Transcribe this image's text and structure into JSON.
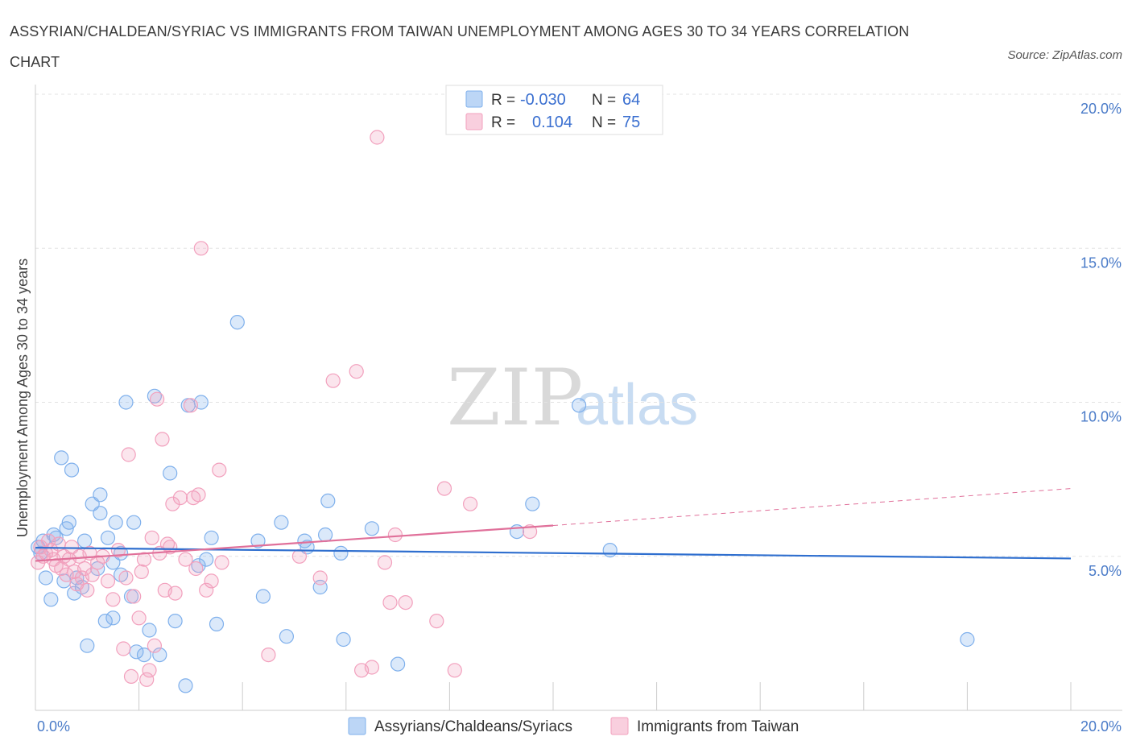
{
  "header": {
    "title": "ASSYRIAN/CHALDEAN/SYRIAC VS IMMIGRANTS FROM TAIWAN UNEMPLOYMENT AMONG AGES 30 TO 34 YEARS CORRELATION CHART",
    "source": "Source: ZipAtlas.com"
  },
  "watermark": {
    "zip": "ZIP",
    "atlas": "atlas"
  },
  "legend": {
    "r_label": "R =",
    "n_label": "N =",
    "items": [
      {
        "r": "-0.030",
        "n": "64",
        "color": "#7fb0ec"
      },
      {
        "r": "0.104",
        "n": "75",
        "color": "#f2a0bd"
      }
    ]
  },
  "chart_data": {
    "type": "scatter",
    "xlabel": "",
    "ylabel": "Unemployment Among Ages 30 to 34 years",
    "xlim": [
      0,
      20
    ],
    "ylim": [
      0,
      20
    ],
    "x_tick_labels": [
      "0.0%",
      "20.0%"
    ],
    "y_tick_labels": [
      "5.0%",
      "10.0%",
      "15.0%",
      "20.0%"
    ],
    "y_ticks": [
      5,
      10,
      15,
      20
    ],
    "grid": true,
    "series": [
      {
        "name": "Assyrians/Chaldeans/Syriacs",
        "color": "#7fb0ec",
        "line_color": "#2f6fcf",
        "trend": {
          "x0": 0,
          "y0": 5.28,
          "x1": 20,
          "y1": 4.93
        },
        "points": [
          [
            0.05,
            5.3
          ],
          [
            0.1,
            5.1
          ],
          [
            0.15,
            5.5
          ],
          [
            0.2,
            4.3
          ],
          [
            0.3,
            3.6
          ],
          [
            0.35,
            5.7
          ],
          [
            0.4,
            5.6
          ],
          [
            0.5,
            8.2
          ],
          [
            0.55,
            4.2
          ],
          [
            0.6,
            5.9
          ],
          [
            0.65,
            6.1
          ],
          [
            0.7,
            7.8
          ],
          [
            0.75,
            3.8
          ],
          [
            0.8,
            4.3
          ],
          [
            0.9,
            4.0
          ],
          [
            0.95,
            5.5
          ],
          [
            1.0,
            2.1
          ],
          [
            1.1,
            6.7
          ],
          [
            1.2,
            4.6
          ],
          [
            1.25,
            7.0
          ],
          [
            1.25,
            6.4
          ],
          [
            1.35,
            2.9
          ],
          [
            1.4,
            5.6
          ],
          [
            1.5,
            3.0
          ],
          [
            1.5,
            4.8
          ],
          [
            1.55,
            6.1
          ],
          [
            1.65,
            5.1
          ],
          [
            1.65,
            4.4
          ],
          [
            1.75,
            10.0
          ],
          [
            1.85,
            3.7
          ],
          [
            1.9,
            6.1
          ],
          [
            1.95,
            1.9
          ],
          [
            2.1,
            1.8
          ],
          [
            2.2,
            2.6
          ],
          [
            2.3,
            10.2
          ],
          [
            2.4,
            1.8
          ],
          [
            2.6,
            7.7
          ],
          [
            2.7,
            2.9
          ],
          [
            2.9,
            0.8
          ],
          [
            2.95,
            9.9
          ],
          [
            3.15,
            4.7
          ],
          [
            3.2,
            10.0
          ],
          [
            3.3,
            4.9
          ],
          [
            3.4,
            5.6
          ],
          [
            3.5,
            2.8
          ],
          [
            3.9,
            12.6
          ],
          [
            4.3,
            5.5
          ],
          [
            4.4,
            3.7
          ],
          [
            4.75,
            6.1
          ],
          [
            4.85,
            2.4
          ],
          [
            5.2,
            5.5
          ],
          [
            5.25,
            5.3
          ],
          [
            5.5,
            4.0
          ],
          [
            5.6,
            5.7
          ],
          [
            5.65,
            6.8
          ],
          [
            5.9,
            5.1
          ],
          [
            5.95,
            2.3
          ],
          [
            6.5,
            5.9
          ],
          [
            7.0,
            1.5
          ],
          [
            9.3,
            5.8
          ],
          [
            9.6,
            6.7
          ],
          [
            10.5,
            9.9
          ],
          [
            11.1,
            5.2
          ],
          [
            18.0,
            2.3
          ]
        ]
      },
      {
        "name": "Immigrants from Taiwan",
        "color": "#f2a0bd",
        "line_color": "#e0709a",
        "trend": {
          "x0": 0,
          "y0": 4.85,
          "x1": 10,
          "y1": 6.0,
          "dash_x1": 20,
          "dash_y1": 7.2
        },
        "points": [
          [
            0.05,
            4.8
          ],
          [
            0.1,
            5.3
          ],
          [
            0.15,
            5.0
          ],
          [
            0.2,
            5.1
          ],
          [
            0.25,
            5.5
          ],
          [
            0.3,
            5.2
          ],
          [
            0.35,
            4.9
          ],
          [
            0.4,
            4.7
          ],
          [
            0.45,
            5.4
          ],
          [
            0.5,
            4.6
          ],
          [
            0.55,
            5.0
          ],
          [
            0.6,
            4.4
          ],
          [
            0.65,
            4.9
          ],
          [
            0.7,
            5.3
          ],
          [
            0.75,
            4.5
          ],
          [
            0.8,
            4.1
          ],
          [
            0.85,
            5.0
          ],
          [
            0.9,
            4.3
          ],
          [
            0.95,
            4.6
          ],
          [
            1.0,
            3.9
          ],
          [
            1.05,
            5.1
          ],
          [
            1.1,
            4.4
          ],
          [
            1.2,
            4.8
          ],
          [
            1.3,
            5.0
          ],
          [
            1.4,
            4.2
          ],
          [
            1.5,
            3.6
          ],
          [
            1.6,
            5.2
          ],
          [
            1.7,
            2.0
          ],
          [
            1.75,
            4.3
          ],
          [
            1.8,
            8.3
          ],
          [
            1.85,
            1.1
          ],
          [
            1.9,
            3.7
          ],
          [
            2.0,
            3.0
          ],
          [
            2.05,
            4.5
          ],
          [
            2.1,
            4.9
          ],
          [
            2.15,
            1.0
          ],
          [
            2.2,
            1.3
          ],
          [
            2.25,
            5.6
          ],
          [
            2.3,
            2.1
          ],
          [
            2.35,
            10.1
          ],
          [
            2.4,
            5.1
          ],
          [
            2.45,
            8.8
          ],
          [
            2.5,
            3.9
          ],
          [
            2.55,
            5.4
          ],
          [
            2.6,
            5.3
          ],
          [
            2.65,
            6.7
          ],
          [
            2.7,
            3.8
          ],
          [
            2.8,
            6.9
          ],
          [
            2.9,
            4.9
          ],
          [
            3.0,
            9.9
          ],
          [
            3.05,
            6.9
          ],
          [
            3.1,
            4.6
          ],
          [
            3.15,
            7.0
          ],
          [
            3.2,
            15.0
          ],
          [
            3.3,
            3.9
          ],
          [
            3.4,
            4.2
          ],
          [
            3.55,
            7.8
          ],
          [
            3.6,
            4.8
          ],
          [
            4.5,
            1.8
          ],
          [
            5.1,
            5.0
          ],
          [
            5.5,
            4.3
          ],
          [
            5.75,
            10.7
          ],
          [
            6.2,
            11.0
          ],
          [
            6.3,
            1.3
          ],
          [
            6.5,
            1.4
          ],
          [
            6.6,
            18.6
          ],
          [
            6.75,
            4.8
          ],
          [
            6.85,
            3.5
          ],
          [
            6.95,
            5.7
          ],
          [
            7.15,
            3.5
          ],
          [
            7.75,
            2.9
          ],
          [
            7.9,
            7.2
          ],
          [
            8.1,
            1.3
          ],
          [
            8.4,
            6.7
          ],
          [
            9.55,
            5.8
          ]
        ]
      }
    ]
  }
}
